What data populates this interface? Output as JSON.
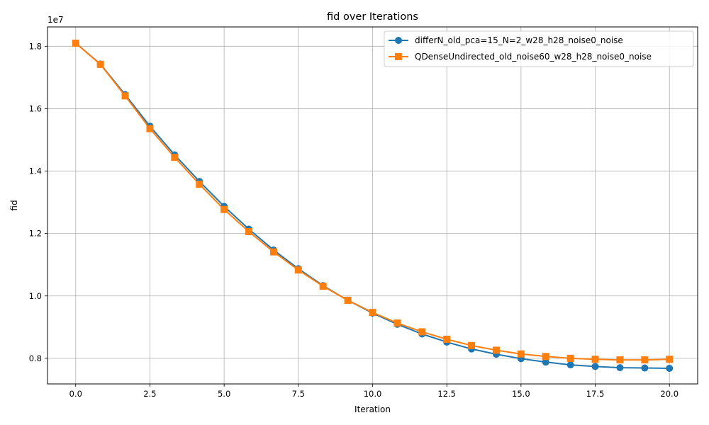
{
  "chart_data": {
    "type": "line",
    "title": "fid over Iterations",
    "xlabel": "Iteration",
    "ylabel": "fid",
    "y_offset_label": "1e7",
    "xlim": [
      -0.95,
      20.95
    ],
    "ylim": [
      7.18,
      18.62
    ],
    "xticks": [
      0.0,
      2.5,
      5.0,
      7.5,
      10.0,
      12.5,
      15.0,
      17.5,
      20.0
    ],
    "xtick_labels": [
      "0.0",
      "2.5",
      "5.0",
      "7.5",
      "10.0",
      "12.5",
      "15.0",
      "17.5",
      "20.0"
    ],
    "yticks": [
      8,
      10,
      12,
      14,
      16,
      18
    ],
    "ytick_labels": [
      "0.8",
      "1.0",
      "1.2",
      "1.4",
      "1.6",
      "1.8"
    ],
    "grid": true,
    "legend_position": "top-right",
    "x": [
      0.0,
      0.833,
      1.667,
      2.5,
      3.333,
      4.167,
      5.0,
      5.833,
      6.667,
      7.5,
      8.333,
      9.167,
      10.0,
      10.833,
      11.667,
      12.5,
      13.333,
      14.167,
      15.0,
      15.833,
      16.667,
      17.5,
      18.333,
      19.167,
      20.0
    ],
    "series": [
      {
        "name": "differN_old_pca=15_N=2_w28_h28_noise0_noise",
        "color": "#1f77b4",
        "marker": "circle",
        "values": [
          18.1,
          17.43,
          16.45,
          15.44,
          14.52,
          13.67,
          12.87,
          12.14,
          11.47,
          10.87,
          10.33,
          9.86,
          9.45,
          9.09,
          8.78,
          8.52,
          8.3,
          8.13,
          7.99,
          7.88,
          7.79,
          7.74,
          7.7,
          7.69,
          7.68
        ]
      },
      {
        "name": "QDenseUndirected_old_noise60_w28_h28_noise0_noise",
        "color": "#ff7f0e",
        "marker": "square",
        "values": [
          18.1,
          17.42,
          16.41,
          15.36,
          14.44,
          13.58,
          12.77,
          12.06,
          11.41,
          10.83,
          10.31,
          9.86,
          9.47,
          9.13,
          8.85,
          8.61,
          8.41,
          8.26,
          8.14,
          8.06,
          8.0,
          7.97,
          7.95,
          7.95,
          7.97
        ]
      }
    ]
  }
}
